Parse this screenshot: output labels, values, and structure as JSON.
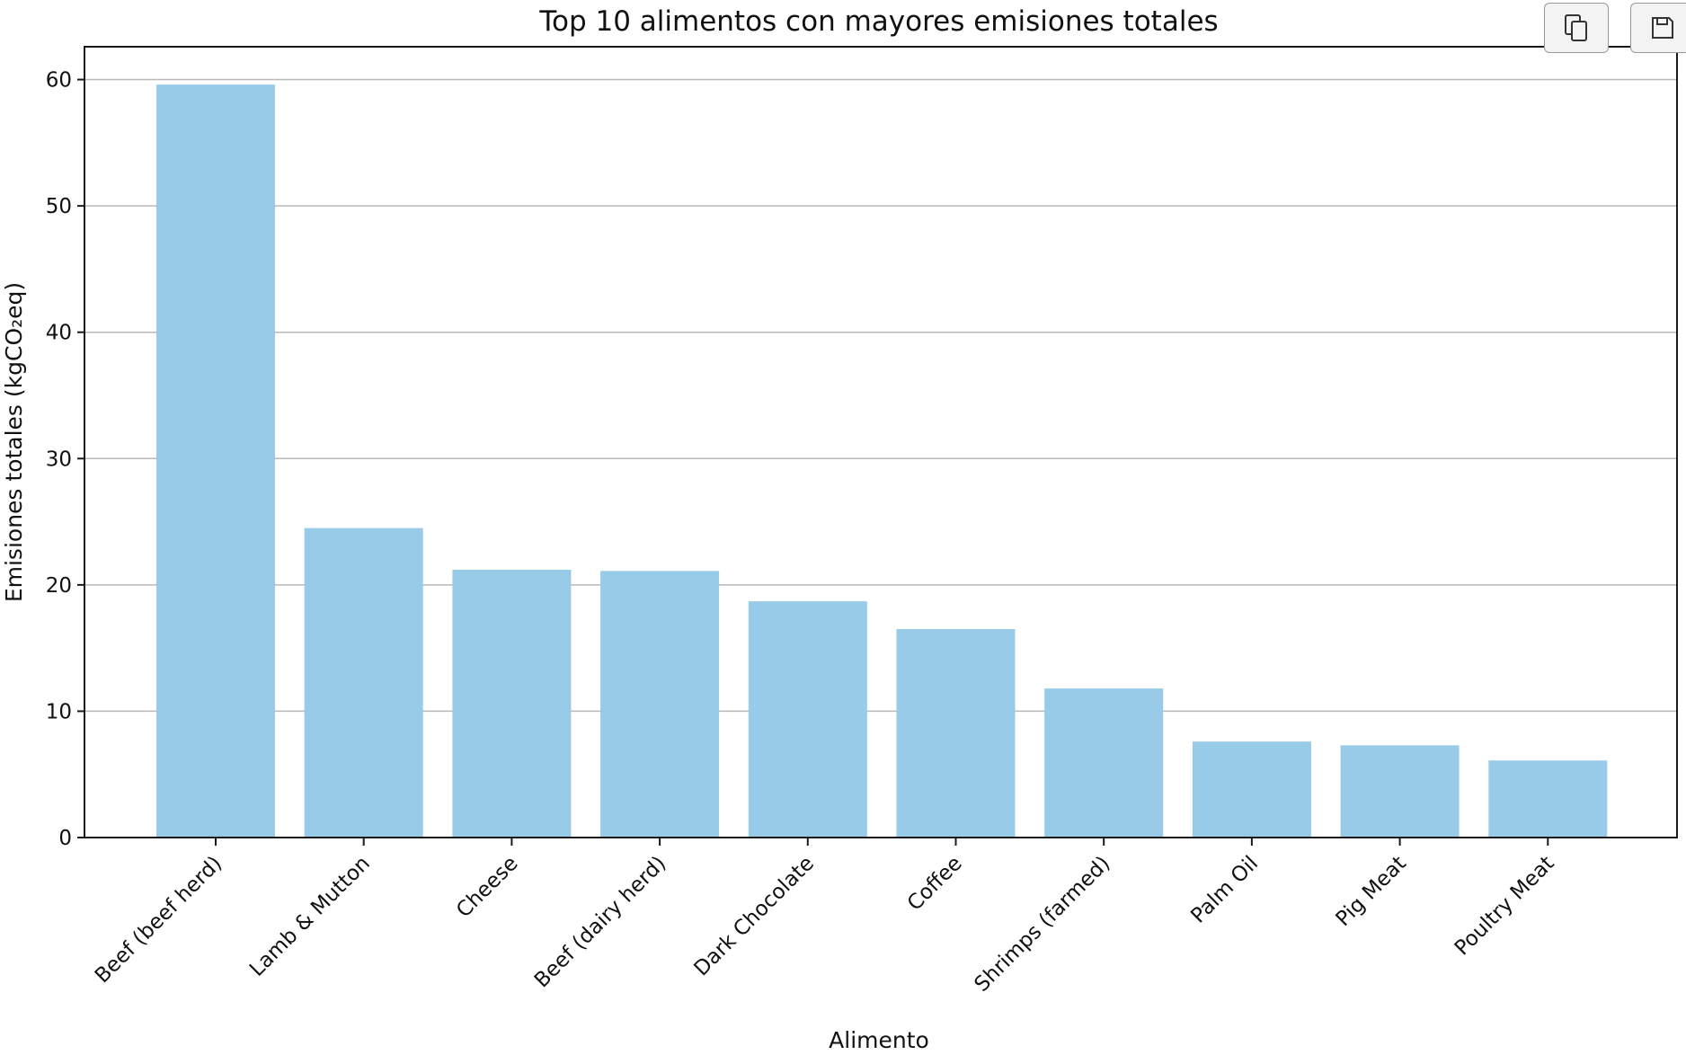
{
  "toolbar": {
    "buttons": [
      {
        "name": "copy-button",
        "icon": "copy-icon"
      },
      {
        "name": "save-button",
        "icon": "floppy-disk-icon"
      }
    ]
  },
  "chart_data": {
    "type": "bar",
    "title": "Top 10 alimentos con mayores emisiones totales",
    "xlabel": "Alimento",
    "ylabel": "Emisiones totales (kgCO₂eq)",
    "categories": [
      "Beef (beef herd)",
      "Lamb & Mutton",
      "Cheese",
      "Beef (dairy herd)",
      "Dark Chocolate",
      "Coffee",
      "Shrimps (farmed)",
      "Palm Oil",
      "Pig Meat",
      "Poultry Meat"
    ],
    "values": [
      59.6,
      24.5,
      21.2,
      21.1,
      18.7,
      16.5,
      11.8,
      7.6,
      7.3,
      6.1
    ],
    "ylim": [
      0,
      62.6
    ],
    "yticks": [
      0,
      10,
      20,
      30,
      40,
      50,
      60
    ],
    "grid": "horizontal",
    "bar_color": "#97cbe7",
    "grid_color": "#b8b8b8"
  }
}
